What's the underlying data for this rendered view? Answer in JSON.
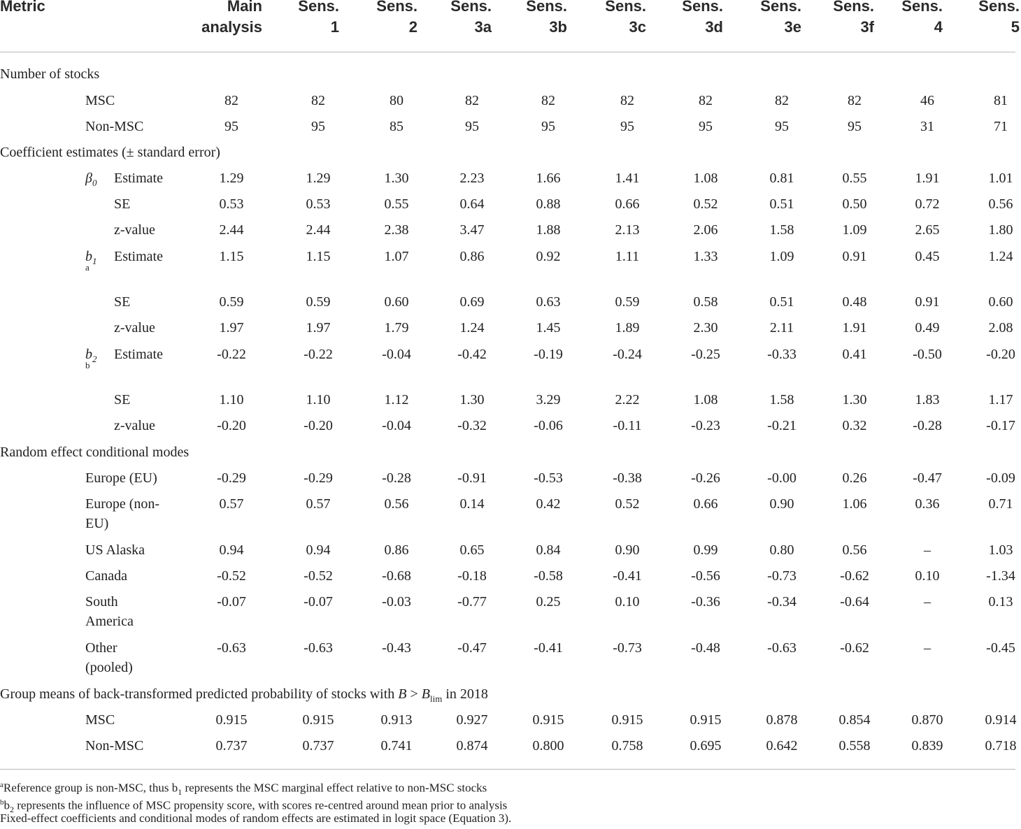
{
  "header": {
    "metric": "Metric",
    "columns": [
      "Main\nanalysis",
      "Sens.\n1",
      "Sens.\n2",
      "Sens.\n3a",
      "Sens.\n3b",
      "Sens.\n3c",
      "Sens.\n3d",
      "Sens.\n3e",
      "Sens.\n3f",
      "Sens.\n4",
      "Sens.\n5"
    ]
  },
  "sections": {
    "stocks": "Number of stocks",
    "coef": "Coefficient estimates (± standard error)",
    "random": "Random effect conditional modes",
    "means_prefix": "Group means of back-transformed predicted probability of stocks with ",
    "means_B": "B",
    "means_gt": " > ",
    "means_Blim": "B",
    "means_lim": "lim",
    "means_suffix": " in 2018"
  },
  "stocks": [
    {
      "label": "MSC",
      "values": [
        "82",
        "82",
        "80",
        "82",
        "82",
        "82",
        "82",
        "82",
        "82",
        "46",
        "81"
      ]
    },
    {
      "label": "Non-MSC",
      "values": [
        "95",
        "95",
        "85",
        "95",
        "95",
        "95",
        "95",
        "95",
        "95",
        "31",
        "71"
      ]
    }
  ],
  "coefficients": [
    {
      "symbol": "β",
      "sub": "0",
      "note": "",
      "rows": [
        {
          "label": "Estimate",
          "values": [
            "1.29",
            "1.29",
            "1.30",
            "2.23",
            "1.66",
            "1.41",
            "1.08",
            "0.81",
            "0.55",
            "1.91",
            "1.01"
          ]
        },
        {
          "label": "SE",
          "values": [
            "0.53",
            "0.53",
            "0.55",
            "0.64",
            "0.88",
            "0.66",
            "0.52",
            "0.51",
            "0.50",
            "0.72",
            "0.56"
          ]
        },
        {
          "label": "z-value",
          "values": [
            "2.44",
            "2.44",
            "2.38",
            "3.47",
            "1.88",
            "2.13",
            "2.06",
            "1.58",
            "1.09",
            "2.65",
            "1.80"
          ]
        }
      ]
    },
    {
      "symbol": "b",
      "sub": "1",
      "note": "a",
      "rows": [
        {
          "label": "Estimate",
          "values": [
            "1.15",
            "1.15",
            "1.07",
            "0.86",
            "0.92",
            "1.11",
            "1.33",
            "1.09",
            "0.91",
            "0.45",
            "1.24"
          ]
        },
        {
          "label": "SE",
          "values": [
            "0.59",
            "0.59",
            "0.60",
            "0.69",
            "0.63",
            "0.59",
            "0.58",
            "0.51",
            "0.48",
            "0.91",
            "0.60"
          ]
        },
        {
          "label": "z-value",
          "values": [
            "1.97",
            "1.97",
            "1.79",
            "1.24",
            "1.45",
            "1.89",
            "2.30",
            "2.11",
            "1.91",
            "0.49",
            "2.08"
          ]
        }
      ]
    },
    {
      "symbol": "b",
      "sub": "2",
      "note": "b",
      "rows": [
        {
          "label": "Estimate",
          "values": [
            "-0.22",
            "-0.22",
            "-0.04",
            "-0.42",
            "-0.19",
            "-0.24",
            "-0.25",
            "-0.33",
            "0.41",
            "-0.50",
            "-0.20"
          ]
        },
        {
          "label": "SE",
          "values": [
            "1.10",
            "1.10",
            "1.12",
            "1.30",
            "3.29",
            "2.22",
            "1.08",
            "1.58",
            "1.30",
            "1.83",
            "1.17"
          ]
        },
        {
          "label": "z-value",
          "values": [
            "-0.20",
            "-0.20",
            "-0.04",
            "-0.32",
            "-0.06",
            "-0.11",
            "-0.23",
            "-0.21",
            "0.32",
            "-0.28",
            "-0.17"
          ]
        }
      ]
    }
  ],
  "random": [
    {
      "label": "Europe (EU)",
      "label2": "",
      "values": [
        "-0.29",
        "-0.29",
        "-0.28",
        "-0.91",
        "-0.53",
        "-0.38",
        "-0.26",
        "-0.00",
        "0.26",
        "-0.47",
        "-0.09"
      ]
    },
    {
      "label": "Europe (non-",
      "label2": "EU)",
      "values": [
        "0.57",
        "0.57",
        "0.56",
        "0.14",
        "0.42",
        "0.52",
        "0.66",
        "0.90",
        "1.06",
        "0.36",
        "0.71"
      ]
    },
    {
      "label": "US Alaska",
      "label2": "",
      "values": [
        "0.94",
        "0.94",
        "0.86",
        "0.65",
        "0.84",
        "0.90",
        "0.99",
        "0.80",
        "0.56",
        "–",
        "1.03"
      ]
    },
    {
      "label": "Canada",
      "label2": "",
      "values": [
        "-0.52",
        "-0.52",
        "-0.68",
        "-0.18",
        "-0.58",
        "-0.41",
        "-0.56",
        "-0.73",
        "-0.62",
        "0.10",
        "-1.34"
      ]
    },
    {
      "label": "South",
      "label2": "America",
      "values": [
        "-0.07",
        "-0.07",
        "-0.03",
        "-0.77",
        "0.25",
        "0.10",
        "-0.36",
        "-0.34",
        "-0.64",
        "–",
        "0.13"
      ]
    },
    {
      "label": "Other",
      "label2": "(pooled)",
      "values": [
        "-0.63",
        "-0.63",
        "-0.43",
        "-0.47",
        "-0.41",
        "-0.73",
        "-0.48",
        "-0.63",
        "-0.62",
        "–",
        "-0.45"
      ]
    }
  ],
  "means": [
    {
      "label": "MSC",
      "values": [
        "0.915",
        "0.915",
        "0.913",
        "0.927",
        "0.915",
        "0.915",
        "0.915",
        "0.878",
        "0.854",
        "0.870",
        "0.914"
      ]
    },
    {
      "label": "Non-MSC",
      "values": [
        "0.737",
        "0.737",
        "0.741",
        "0.874",
        "0.800",
        "0.758",
        "0.695",
        "0.642",
        "0.558",
        "0.839",
        "0.718"
      ]
    }
  ],
  "footnotes": [
    {
      "mark": "a",
      "pre": "Reference group is non-MSC, thus b",
      "sub": "1",
      "post": " represents the MSC marginal effect relative to non-MSC stocks"
    },
    {
      "mark": "b",
      "pre": "b",
      "sub": "2",
      "post": " represents the influence of MSC propensity score, with scores re-centred around mean prior to analysis"
    },
    {
      "mark": "",
      "pre": "Fixed-effect coefficients and conditional modes of random effects are estimated in logit space (Equation 3).",
      "sub": "",
      "post": ""
    }
  ]
}
